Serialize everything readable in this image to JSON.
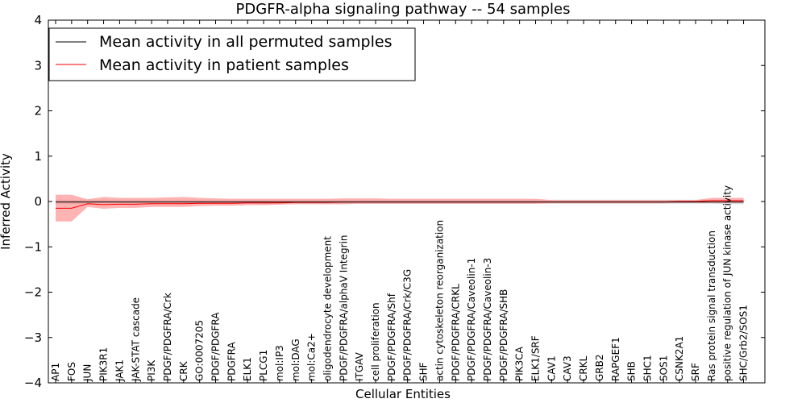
{
  "chart_data": {
    "type": "line",
    "title": "PDGFR-alpha signaling pathway -- 54 samples",
    "xlabel": "Cellular Entities",
    "ylabel": "Inferred Activity",
    "ylim": [
      -4,
      4
    ],
    "yticks": [
      4,
      3,
      2,
      1,
      0,
      -1,
      -2,
      -3,
      -4
    ],
    "ytick_labels": [
      "4",
      "3",
      "2",
      "1",
      "0",
      "−1",
      "−2",
      "−3",
      "−4"
    ],
    "grid": false,
    "legend_position": "top-left",
    "categories": [
      "AP1",
      "FOS",
      "JUN",
      "PIK3R1",
      "JAK1",
      "JAK-STAT cascade",
      "PI3K",
      "PDGF/PDGFRA/Crk",
      "CRK",
      "GO:0007205",
      "PDGF/PDGFRA",
      "PDGFRA",
      "ELK1",
      "PLCG1",
      "mol:IP3",
      "mol:DAG",
      "mol:Ca2+",
      "oligodendrocyte development",
      "PDGF/PDGFRA/alphaV Integrin",
      "ITGAV",
      "cell proliferation",
      "PDGF/PDGFRA/Shf",
      "PDGF/PDGFRA/Crk/C3G",
      "SHF",
      "actin cytoskeleton reorganization",
      "PDGF/PDGFRA/CRKL",
      "PDGF/PDGFRA/Caveolin-1",
      "PDGF/PDGFRA/Caveolin-3",
      "PDGF/PDGFRA/SHB",
      "PIK3CA",
      "ELK1/SRF",
      "CAV1",
      "CAV3",
      "CRKL",
      "GRB2",
      "RAPGEF1",
      "SHB",
      "SHC1",
      "SOS1",
      "CSNK2A1",
      "SRF",
      "Ras protein signal transduction",
      "positive regulation of JUN kinase activity",
      "SHC/Grb2/SOS1"
    ],
    "series": [
      {
        "name": "Mean activity in all permuted samples",
        "color": "#000000",
        "values": [
          -0.01,
          -0.01,
          -0.01,
          -0.01,
          -0.01,
          -0.01,
          -0.01,
          -0.01,
          -0.01,
          -0.01,
          -0.01,
          -0.01,
          -0.01,
          -0.01,
          -0.01,
          -0.01,
          -0.01,
          -0.01,
          -0.01,
          -0.01,
          -0.01,
          -0.01,
          -0.01,
          -0.01,
          -0.01,
          -0.01,
          -0.01,
          -0.01,
          -0.01,
          -0.01,
          -0.01,
          -0.01,
          -0.01,
          -0.01,
          -0.01,
          -0.01,
          -0.01,
          -0.01,
          -0.01,
          -0.01,
          -0.01,
          -0.01,
          -0.01,
          -0.01
        ],
        "lower": [
          -0.06,
          -0.06,
          -0.05,
          -0.05,
          -0.05,
          -0.05,
          -0.05,
          -0.05,
          -0.05,
          -0.05,
          -0.05,
          -0.05,
          -0.05,
          -0.05,
          -0.05,
          -0.05,
          -0.05,
          -0.05,
          -0.05,
          -0.05,
          -0.05,
          -0.05,
          -0.05,
          -0.05,
          -0.05,
          -0.05,
          -0.05,
          -0.05,
          -0.05,
          -0.05,
          -0.05,
          -0.05,
          -0.05,
          -0.05,
          -0.05,
          -0.05,
          -0.05,
          -0.05,
          -0.05,
          -0.05,
          -0.05,
          -0.05,
          -0.06,
          -0.06
        ],
        "upper": [
          0.04,
          0.04,
          0.04,
          0.04,
          0.04,
          0.04,
          0.04,
          0.04,
          0.04,
          0.04,
          0.04,
          0.04,
          0.04,
          0.04,
          0.04,
          0.04,
          0.04,
          0.04,
          0.04,
          0.04,
          0.04,
          0.04,
          0.04,
          0.04,
          0.04,
          0.04,
          0.04,
          0.04,
          0.04,
          0.04,
          0.04,
          0.04,
          0.04,
          0.04,
          0.04,
          0.04,
          0.04,
          0.04,
          0.04,
          0.04,
          0.04,
          0.04,
          0.04,
          0.04
        ]
      },
      {
        "name": "Mean activity in patient samples",
        "color": "#ff0000",
        "band_color": "#ff8080",
        "values": [
          -0.15,
          -0.15,
          -0.05,
          -0.07,
          -0.06,
          -0.06,
          -0.05,
          -0.05,
          -0.05,
          -0.04,
          -0.04,
          -0.04,
          -0.03,
          -0.03,
          -0.03,
          -0.02,
          -0.02,
          -0.02,
          -0.01,
          -0.01,
          -0.01,
          -0.01,
          -0.01,
          -0.01,
          -0.01,
          -0.01,
          -0.01,
          -0.01,
          -0.01,
          -0.01,
          -0.01,
          -0.01,
          -0.01,
          -0.01,
          -0.01,
          -0.01,
          -0.01,
          -0.01,
          -0.01,
          0.0,
          0.0,
          0.02,
          0.02,
          0.02
        ],
        "lower": [
          -0.44,
          -0.44,
          -0.12,
          -0.16,
          -0.14,
          -0.14,
          -0.12,
          -0.12,
          -0.12,
          -0.1,
          -0.09,
          -0.09,
          -0.08,
          -0.08,
          -0.07,
          -0.06,
          -0.06,
          -0.06,
          -0.06,
          -0.05,
          -0.05,
          -0.05,
          -0.05,
          -0.05,
          -0.05,
          -0.05,
          -0.05,
          -0.05,
          -0.05,
          -0.05,
          -0.05,
          -0.04,
          -0.04,
          -0.04,
          -0.04,
          -0.04,
          -0.04,
          -0.04,
          -0.04,
          -0.03,
          -0.03,
          -0.03,
          -0.03,
          -0.03
        ],
        "upper": [
          0.15,
          0.15,
          0.05,
          0.1,
          0.08,
          0.08,
          0.08,
          0.09,
          0.1,
          0.08,
          0.07,
          0.06,
          0.06,
          0.06,
          0.06,
          0.06,
          0.06,
          0.06,
          0.07,
          0.07,
          0.07,
          0.06,
          0.06,
          0.06,
          0.06,
          0.06,
          0.06,
          0.06,
          0.06,
          0.06,
          0.06,
          0.03,
          0.03,
          0.03,
          0.03,
          0.03,
          0.03,
          0.03,
          0.03,
          0.03,
          0.03,
          0.08,
          0.08,
          0.08
        ]
      }
    ]
  }
}
